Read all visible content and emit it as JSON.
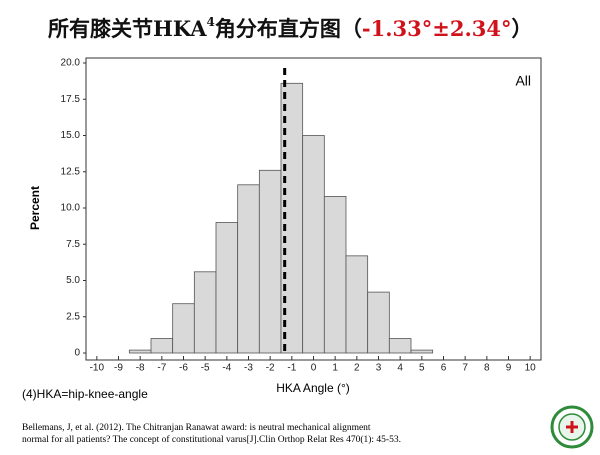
{
  "header": {
    "title_prefix": "所有膝关节HKA",
    "title_sup": "4",
    "title_middle": "角分布直方图（",
    "title_highlight": "-1.33°±2.34°",
    "title_suffix": "）"
  },
  "chart_data": {
    "type": "histogram",
    "annotation": "All",
    "xlabel": "HKA Angle (°)",
    "ylabel": "Percent",
    "bins": [
      -8.5,
      -7.5,
      -6.5,
      -5.5,
      -4.5,
      -3.5,
      -2.5,
      -1.5,
      -0.5,
      0.5,
      1.5,
      2.5,
      3.5,
      4.5,
      5.5
    ],
    "counts": [
      0.2,
      1.0,
      3.4,
      5.6,
      9.0,
      11.6,
      12.6,
      18.6,
      15.0,
      10.8,
      6.7,
      4.2,
      1.0,
      0.2
    ],
    "color": "#d9d9d9",
    "mean_line": -1.33,
    "xlim": [
      -10.5,
      10.5
    ],
    "xticks": [
      -10,
      -9,
      -8,
      -7,
      -6,
      -5,
      -4,
      -3,
      -2,
      -1,
      0,
      1,
      2,
      3,
      4,
      5,
      6,
      7,
      8,
      9,
      10
    ],
    "ylim": [
      0,
      20
    ],
    "yticks": [
      0,
      2.5,
      {
        "value": 5,
        "label": "5.0"
      },
      {
        "value": 7.5,
        "label": "7.5"
      },
      {
        "value": 10,
        "label": "10.0"
      },
      12.5,
      {
        "value": 15,
        "label": "15.0"
      },
      17.5,
      {
        "value": 20,
        "label": "20.0"
      }
    ]
  },
  "footnote": "(4)HKA=hip-knee-angle",
  "reference": [
    "Bellemans, J, et al. (2012). The Chitranjan Ranawat award: is neutral mechanical alignment",
    "normal for all patients? The concept of constitutional varus[J].Clin Orthop Relat Res 470(1): 45-53."
  ]
}
